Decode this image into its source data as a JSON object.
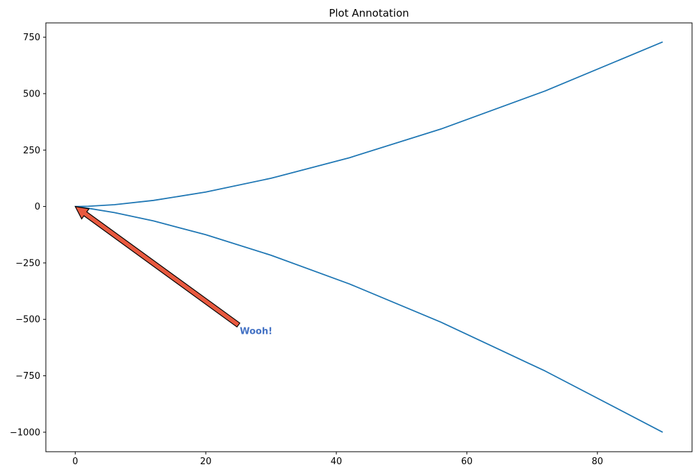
{
  "chart_data": {
    "type": "line",
    "title": "Plot Annotation",
    "xlabel": "",
    "ylabel": "",
    "xlim": [
      -4.5,
      94.5
    ],
    "ylim": [
      -1086.4,
      813.4
    ],
    "x_ticks": [
      0,
      20,
      40,
      60,
      80
    ],
    "x_tick_labels": [
      "0",
      "20",
      "40",
      "60",
      "80"
    ],
    "y_ticks": [
      750,
      500,
      250,
      0,
      -250,
      -500,
      -750,
      -1000
    ],
    "y_tick_labels": [
      "750",
      "500",
      "250",
      "0",
      "−250",
      "−500",
      "−750",
      "−1000"
    ],
    "grid": false,
    "legend": "none",
    "series": [
      {
        "values_x": [
          0,
          2,
          6,
          12,
          20,
          30,
          42,
          56,
          72,
          90
        ],
        "values_y": [
          0,
          1,
          8,
          27,
          64,
          125,
          216,
          343,
          512,
          729
        ]
      },
      {
        "values_x": [
          0,
          2,
          6,
          12,
          20,
          30,
          42,
          56,
          72,
          90
        ],
        "values_y": [
          0,
          -8,
          -27,
          -64,
          -125,
          -216,
          -343,
          -512,
          -729,
          -1000
        ]
      }
    ],
    "annotations": [
      {
        "text": "Wooh!",
        "xy": [
          0,
          0
        ],
        "xytext": [
          25,
          -525
        ]
      }
    ]
  },
  "colors": {
    "line": "#1f77b4",
    "arrow_fill": "#e8593f",
    "arrow_edge": "#000000",
    "annotation_text": "#4472c4",
    "axes": "#000000",
    "background": "#ffffff"
  }
}
